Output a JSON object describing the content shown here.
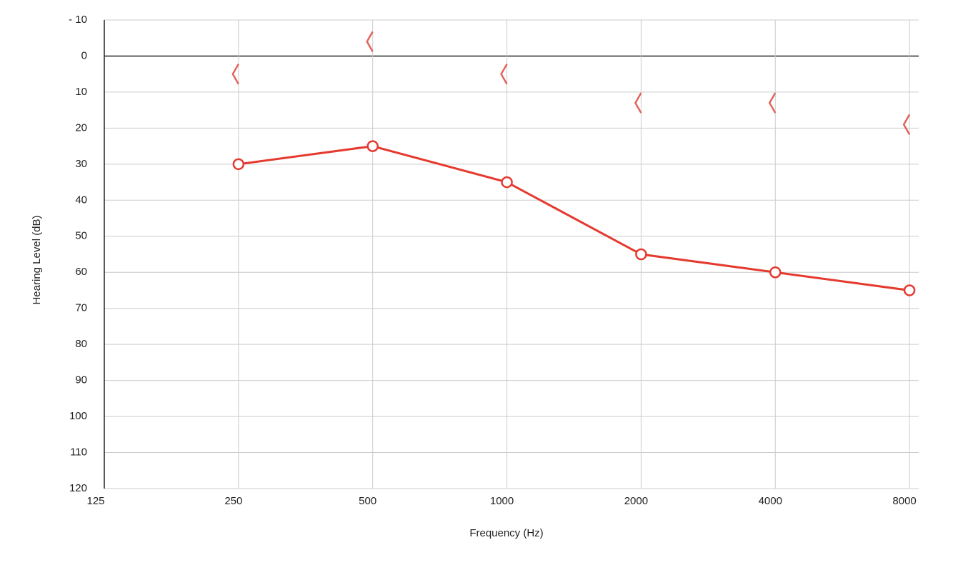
{
  "chart_data": {
    "type": "line",
    "xlabel": "Frequency (Hz)",
    "ylabel": "Hearing Level (dB)",
    "x": [
      250,
      500,
      1000,
      2000,
      4000,
      8000
    ],
    "xscale": "log",
    "xlim": [
      125,
      8390
    ],
    "xticks": [
      125,
      250,
      500,
      1000,
      2000,
      4000,
      8000
    ],
    "ylim": [
      -10,
      120
    ],
    "y_inverted": true,
    "yticks": [
      {
        "value": -10,
        "label": "- 10"
      },
      0,
      10,
      20,
      30,
      40,
      50,
      60,
      70,
      80,
      90,
      100,
      110,
      120
    ],
    "grid": true,
    "series": [
      {
        "color": "#e53a2f",
        "marker": "circle",
        "line": true,
        "values": [
          30,
          25,
          35,
          55,
          60,
          65
        ]
      },
      {
        "color": "#e2635c",
        "marker": "bracket",
        "line": false,
        "values": [
          5,
          -4,
          5,
          13,
          13,
          19
        ]
      }
    ]
  }
}
